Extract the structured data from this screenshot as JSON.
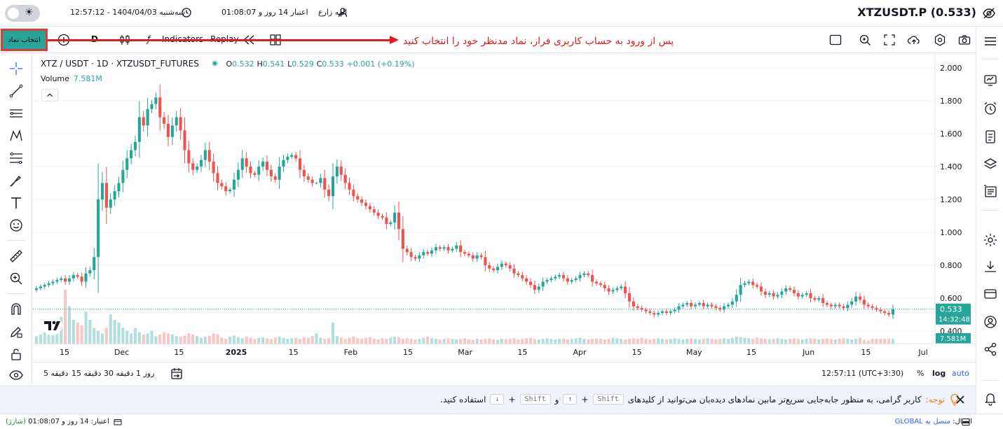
{
  "topbar": {
    "theme_toggle": "light",
    "datetime": "سه‌شنبه 1404/04/03 - 12:57:12",
    "credit": "اعتبار 14 روز و 01:08:07",
    "user": "الهه زارع",
    "symbol_title": "XTZUSDT.P (0.533)"
  },
  "toolbar": {
    "symbol_button": "انتخاب نماد",
    "interval": "D",
    "indicators": "Indicators",
    "replay": "Replay",
    "annotation": "پس از ورود به حساب کاربری فراز، نماد مدنظر خود را انتخاب کنید"
  },
  "legend": {
    "symbol": "XTZ / USDT · 1D · XTZUSDT_FUTURES",
    "o_label": "O",
    "o": "0.532",
    "h_label": "H",
    "h": "0.541",
    "l_label": "L",
    "l": "0.529",
    "c_label": "C",
    "c": "0.533",
    "change": "+0.001 (+0.19%)",
    "volume_label": "Volume",
    "volume_value": "7.581M"
  },
  "price_scale": {
    "ticks": [
      "2.000",
      "1.800",
      "1.600",
      "1.400",
      "1.200",
      "1.000",
      "0.800",
      "0.600",
      "0.400"
    ],
    "last_price": "0.533",
    "countdown": "14:32:48",
    "volume_badge": "7.581M"
  },
  "time_axis": [
    "15",
    "Dec",
    "15",
    "2025",
    "15",
    "Feb",
    "15",
    "Mar",
    "15",
    "Apr",
    "15",
    "May",
    "15",
    "Jun",
    "15",
    "Jul"
  ],
  "chart_data": {
    "type": "candlestick",
    "symbol": "XTZ / USDT",
    "interval": "1D",
    "ylim": [
      0.4,
      2.0
    ],
    "up_color": "#26a69a",
    "down_color": "#ef5350",
    "close": [
      0.66,
      0.67,
      0.68,
      0.69,
      0.7,
      0.71,
      0.72,
      0.7,
      0.72,
      0.74,
      0.73,
      0.7,
      0.75,
      0.77,
      0.85,
      1.2,
      1.3,
      1.15,
      1.2,
      1.25,
      1.3,
      1.38,
      1.45,
      1.5,
      1.55,
      1.7,
      1.65,
      1.75,
      1.78,
      1.82,
      1.7,
      1.66,
      1.58,
      1.65,
      1.7,
      1.62,
      1.5,
      1.42,
      1.38,
      1.4,
      1.44,
      1.5,
      1.43,
      1.36,
      1.3,
      1.28,
      1.25,
      1.26,
      1.32,
      1.38,
      1.45,
      1.4,
      1.36,
      1.35,
      1.4,
      1.43,
      1.38,
      1.34,
      1.32,
      1.4,
      1.44,
      1.46,
      1.47,
      1.45,
      1.38,
      1.34,
      1.32,
      1.3,
      1.3,
      1.33,
      1.26,
      1.22,
      1.34,
      1.4,
      1.35,
      1.3,
      1.26,
      1.22,
      1.2,
      1.18,
      1.16,
      1.14,
      1.12,
      1.1,
      1.09,
      1.05,
      1.06,
      1.12,
      1.02,
      0.9,
      0.88,
      0.85,
      0.84,
      0.86,
      0.88,
      0.87,
      0.89,
      0.91,
      0.9,
      0.91,
      0.89,
      0.9,
      0.92,
      0.88,
      0.87,
      0.86,
      0.84,
      0.86,
      0.85,
      0.8,
      0.78,
      0.77,
      0.79,
      0.81,
      0.8,
      0.78,
      0.75,
      0.74,
      0.72,
      0.7,
      0.68,
      0.65,
      0.67,
      0.7,
      0.71,
      0.72,
      0.73,
      0.74,
      0.72,
      0.7,
      0.71,
      0.72,
      0.74,
      0.75,
      0.74,
      0.7,
      0.69,
      0.68,
      0.66,
      0.64,
      0.65,
      0.66,
      0.67,
      0.63,
      0.58,
      0.55,
      0.54,
      0.53,
      0.52,
      0.51,
      0.5,
      0.51,
      0.52,
      0.51,
      0.52,
      0.53,
      0.55,
      0.56,
      0.57,
      0.55,
      0.56,
      0.57,
      0.55,
      0.56,
      0.55,
      0.54,
      0.53,
      0.55,
      0.56,
      0.58,
      0.62,
      0.68,
      0.69,
      0.7,
      0.68,
      0.67,
      0.64,
      0.62,
      0.63,
      0.61,
      0.62,
      0.64,
      0.66,
      0.65,
      0.63,
      0.61,
      0.62,
      0.63,
      0.6,
      0.59,
      0.6,
      0.57,
      0.56,
      0.55,
      0.56,
      0.55,
      0.54,
      0.56,
      0.58,
      0.61,
      0.59,
      0.56,
      0.55,
      0.54,
      0.53,
      0.52,
      0.51,
      0.5,
      0.533
    ],
    "volume_relative": [
      0.15,
      0.18,
      0.22,
      0.2,
      0.25,
      0.3,
      0.5,
      1.0,
      0.7,
      0.45,
      0.4,
      0.35,
      0.6,
      0.45,
      0.3,
      0.25,
      0.2,
      0.3,
      0.55,
      0.45,
      0.4,
      0.3,
      0.25,
      0.2,
      0.3,
      0.22,
      0.18,
      0.2,
      0.25,
      0.15,
      0.18,
      0.22,
      0.2,
      0.18,
      0.15,
      0.14,
      0.16,
      0.2,
      0.18,
      0.15,
      0.12,
      0.14,
      0.16,
      0.2,
      0.18,
      0.12,
      0.1,
      0.14,
      0.16,
      0.13,
      0.11,
      0.14,
      0.12,
      0.1,
      0.12,
      0.13,
      0.11,
      0.1,
      0.12,
      0.14,
      0.12,
      0.1,
      0.11,
      0.12,
      0.1,
      0.13,
      0.12,
      0.15,
      0.2,
      0.12,
      0.1,
      0.11,
      0.4,
      0.15,
      0.12,
      0.1,
      0.12,
      0.14,
      0.11,
      0.1,
      0.12,
      0.13,
      0.1,
      0.09,
      0.11,
      0.1,
      0.12,
      0.14,
      0.13,
      0.1,
      0.11,
      0.1,
      0.09,
      0.1,
      0.12,
      0.14,
      0.11,
      0.1,
      0.09,
      0.1,
      0.11,
      0.1,
      0.09,
      0.1,
      0.11,
      0.09,
      0.08,
      0.1,
      0.09,
      0.1,
      0.11,
      0.09,
      0.08,
      0.1,
      0.09,
      0.1,
      0.11,
      0.09,
      0.1,
      0.11,
      0.12,
      0.1,
      0.09,
      0.1,
      0.11,
      0.1,
      0.09,
      0.1,
      0.11,
      0.09,
      0.1,
      0.11,
      0.12,
      0.1,
      0.09,
      0.1,
      0.11,
      0.1,
      0.09,
      0.1,
      0.12,
      0.11,
      0.1,
      0.09,
      0.1,
      0.11,
      0.1,
      0.12,
      0.1,
      0.09,
      0.1,
      0.11,
      0.1,
      0.09,
      0.1,
      0.11,
      0.1,
      0.09,
      0.1,
      0.11,
      0.1,
      0.09,
      0.1,
      0.11,
      0.1,
      0.09,
      0.1,
      0.11,
      0.1,
      0.12,
      0.14,
      0.13,
      0.12,
      0.11,
      0.1,
      0.12,
      0.11,
      0.1,
      0.09,
      0.1,
      0.11,
      0.1,
      0.09,
      0.1,
      0.11,
      0.1,
      0.09,
      0.1,
      0.11,
      0.1,
      0.09,
      0.1,
      0.11,
      0.1,
      0.09,
      0.1,
      0.11,
      0.1,
      0.09,
      0.1,
      0.12,
      0.08,
      0.07
    ]
  },
  "rangebar": {
    "ranges": [
      "5 دقیقه",
      "15 دقیقه",
      "30 دقیقه",
      "1 روز"
    ],
    "time": "12:57:11 (UTC+3:30)",
    "percent": "%",
    "log": "log",
    "auto": "auto"
  },
  "notice": {
    "label": "توجه:",
    "text_before": "کاربر گرامی، به منظور جابه‌جایی سریع‌تر مابین نمادهای دیده‌بان می‌توانید از کلیدهای",
    "key_shift": "Shift",
    "key_up": "↑",
    "and": "و",
    "key_down": "↓",
    "text_after": "استفاده کنید."
  },
  "statusbar": {
    "credit_label": "اعتبار:",
    "credit_value": "14 روز و 01:08:07",
    "credit_state": "(شارژ)",
    "connection_label": "اتصال:",
    "connection_value": "متصل به GLOBAL"
  }
}
